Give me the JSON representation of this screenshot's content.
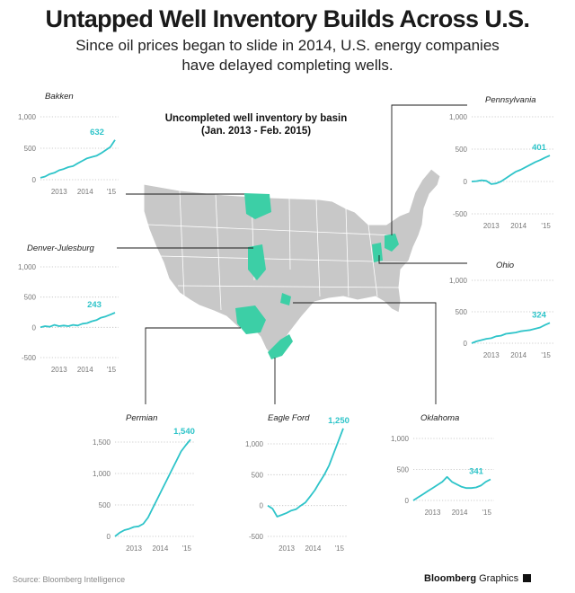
{
  "header": {
    "title": "Untapped Well Inventory Builds Across U.S.",
    "subtitle_line1": "Since oil prices began to slide in 2014, U.S. energy companies",
    "subtitle_line2": "have delayed completing wells."
  },
  "map": {
    "title_line1": "Uncompleted well inventory by basin",
    "title_line2": "(Jan. 2013 - Feb. 2015)",
    "colors": {
      "land": "#c8c8c8",
      "state_lines": "#ffffff",
      "basin": "#3ccfa6",
      "leader": "#1a1a1a"
    }
  },
  "footer": {
    "source": "Source: Bloomberg Intelligence",
    "brand_bold": "Bloomberg",
    "brand_rest": " Graphics"
  },
  "colors": {
    "series": "#2ec4c9",
    "axis_text": "#777777",
    "title": "#222222"
  },
  "chart_data": [
    {
      "type": "line",
      "title": "Bakken",
      "ylim": [
        0,
        1000
      ],
      "yticks": [
        0,
        500,
        1000
      ],
      "ytick_labels": [
        "0",
        "500",
        "1,000"
      ],
      "xticks": [
        "2013",
        "2014",
        "'15"
      ],
      "end_label": "632",
      "series": [
        {
          "values": [
            30,
            50,
            90,
            110,
            150,
            170,
            200,
            215,
            260,
            300,
            340,
            360,
            380,
            420,
            470,
            520,
            632
          ]
        }
      ]
    },
    {
      "type": "line",
      "title": "Pennsylvania",
      "ylim": [
        -500,
        1000
      ],
      "yticks": [
        -500,
        0,
        500,
        1000
      ],
      "ytick_labels": [
        "-500",
        "0",
        "500",
        "1,000"
      ],
      "xticks": [
        "2013",
        "2014",
        "'15"
      ],
      "end_label": "401",
      "series": [
        {
          "values": [
            0,
            5,
            20,
            10,
            -40,
            -30,
            0,
            50,
            100,
            150,
            180,
            220,
            260,
            300,
            330,
            370,
            401
          ]
        }
      ]
    },
    {
      "type": "line",
      "title": "Denver-Julesburg",
      "ylim": [
        -500,
        1000
      ],
      "yticks": [
        -500,
        0,
        500,
        1000
      ],
      "ytick_labels": [
        "-500",
        "0",
        "500",
        "1,000"
      ],
      "xticks": [
        "2013",
        "2014",
        "'15"
      ],
      "end_label": "243",
      "series": [
        {
          "values": [
            0,
            20,
            10,
            40,
            20,
            30,
            20,
            40,
            30,
            60,
            70,
            100,
            120,
            160,
            180,
            210,
            243
          ]
        }
      ]
    },
    {
      "type": "line",
      "title": "Ohio",
      "ylim": [
        0,
        1000
      ],
      "yticks": [
        0,
        500,
        1000
      ],
      "ytick_labels": [
        "0",
        "500",
        "1,000"
      ],
      "xticks": [
        "2013",
        "2014",
        "'15"
      ],
      "end_label": "324",
      "series": [
        {
          "values": [
            0,
            30,
            50,
            70,
            80,
            110,
            120,
            150,
            160,
            170,
            190,
            200,
            210,
            230,
            250,
            290,
            324
          ]
        }
      ]
    },
    {
      "type": "line",
      "title": "Permian",
      "ylim": [
        0,
        1500
      ],
      "yticks": [
        0,
        500,
        1000,
        1500
      ],
      "ytick_labels": [
        "0",
        "500",
        "1,000",
        "1,500"
      ],
      "xticks": [
        "2013",
        "2014",
        "'15"
      ],
      "end_label": "1,540",
      "series": [
        {
          "values": [
            0,
            60,
            100,
            120,
            150,
            160,
            200,
            300,
            450,
            600,
            750,
            900,
            1050,
            1200,
            1350,
            1450,
            1540
          ]
        }
      ]
    },
    {
      "type": "line",
      "title": "Eagle Ford",
      "ylim": [
        -500,
        1000
      ],
      "yticks": [
        -500,
        0,
        500,
        1000
      ],
      "ytick_labels": [
        "-500",
        "0",
        "500",
        "1,000"
      ],
      "xticks": [
        "2013",
        "2014",
        "'15"
      ],
      "end_label": "1,250",
      "series": [
        {
          "values": [
            0,
            -50,
            -180,
            -150,
            -120,
            -80,
            -60,
            0,
            50,
            150,
            250,
            380,
            500,
            650,
            850,
            1050,
            1250
          ]
        }
      ]
    },
    {
      "type": "line",
      "title": "Oklahoma",
      "ylim": [
        0,
        1000
      ],
      "yticks": [
        0,
        500,
        1000
      ],
      "ytick_labels": [
        "0",
        "500",
        "1,000"
      ],
      "xticks": [
        "2013",
        "2014",
        "'15"
      ],
      "end_label": "341",
      "series": [
        {
          "values": [
            0,
            50,
            100,
            150,
            200,
            250,
            300,
            380,
            300,
            260,
            220,
            200,
            200,
            210,
            240,
            300,
            341
          ]
        }
      ]
    }
  ]
}
